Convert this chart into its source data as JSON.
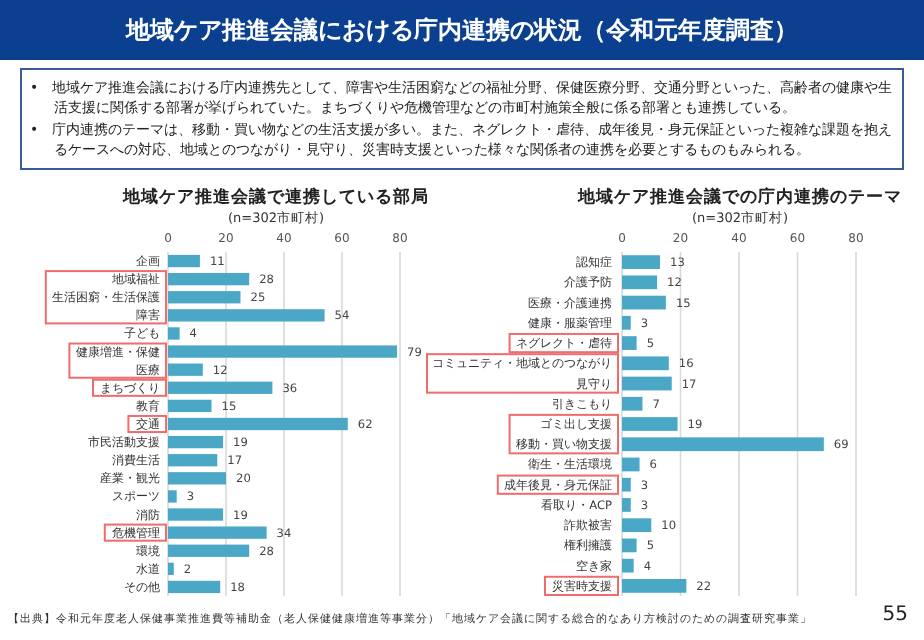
{
  "chart_data": [
    {
      "type": "other",
      "title": "地域ケア推進会議における庁内連携の状況（令和元年度調査）",
      "annotations": [
        "•　地域ケア推進会議における庁内連携先として、障害や生活困窮などの福祉分野、保健医療分野、交通分野といった、高齢者の健康や生活支援に関係する部署が挙げられていた。まちづくりや危機管理などの市町村施策全般に係る部署とも連携している。",
        "•　庁内連携のテーマは、移動・買い物などの生活支援が多い。また、ネグレクト・虐待、成年後見・身元保証といった複雑な課題を抱えるケースへの対応、地域とのつながり・見守り、災害時支援といった様々な関係者の連携を必要とするものもみられる。",
        "【出典】令和元年度老人保健事業推進費等補助金（老人保健健康増進等事業分）「地域ケア会議に関する総合的なあり方検討のための調査研究事業」",
        "55"
      ]
    },
    {
      "type": "bar",
      "orientation": "horizontal",
      "title": "地域ケア推進会議で連携している部局",
      "subtitle": "(n=302市町村)",
      "categories": [
        "企画",
        "地域福祉",
        "生活困窮・生活保護",
        "障害",
        "子ども",
        "健康増進・保健",
        "医療",
        "まちづくり",
        "教育",
        "交通",
        "市民活動支援",
        "消費生活",
        "産業・観光",
        "スポーツ",
        "消防",
        "危機管理",
        "環境",
        "水道",
        "その他"
      ],
      "values": [
        11,
        28,
        25,
        54,
        4,
        79,
        12,
        36,
        15,
        62,
        19,
        17,
        20,
        3,
        19,
        34,
        28,
        2,
        18
      ],
      "color": "#4aa8c6",
      "xlim": [
        0,
        80
      ],
      "xticks": [
        0,
        20,
        40,
        60,
        80
      ],
      "grid": "x",
      "data_labels": true
    },
    {
      "type": "bar",
      "orientation": "horizontal",
      "title": "地域ケア推進会議での庁内連携のテーマ",
      "subtitle": "(n=302市町村)",
      "categories": [
        "認知症",
        "介護予防",
        "医療・介護連携",
        "健康・服薬管理",
        "ネグレクト・虐待",
        "コミュニティ・地域とのつながり",
        "見守り",
        "引きこもり",
        "ゴミ出し支援",
        "移動・買い物支援",
        "衛生・生活環境",
        "成年後見・身元保証",
        "看取り・ACP",
        "詐欺被害",
        "権利擁護",
        "空き家",
        "災害時支援"
      ],
      "values": [
        13,
        12,
        15,
        3,
        5,
        16,
        17,
        7,
        19,
        69,
        6,
        3,
        3,
        10,
        5,
        4,
        22
      ],
      "color": "#4aa8c6",
      "xlim": [
        0,
        80
      ],
      "xticks": [
        0,
        20,
        40,
        60,
        80
      ],
      "grid": "x",
      "data_labels": true
    }
  ]
}
